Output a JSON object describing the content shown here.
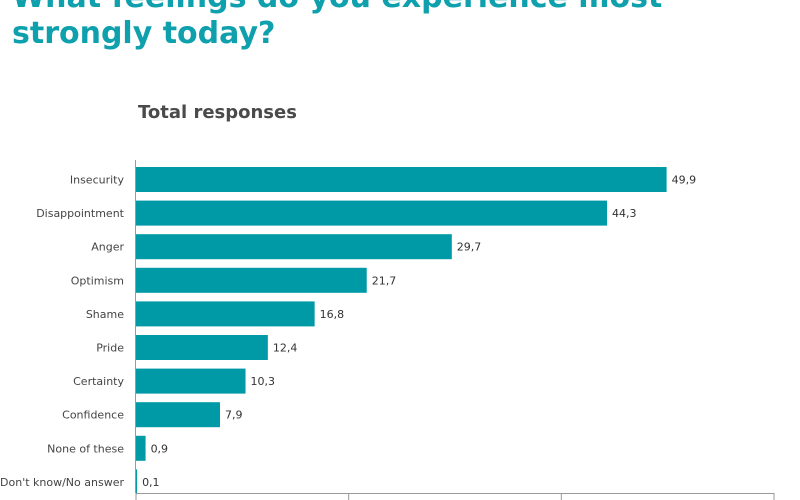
{
  "title": "What feelings do you experience most strongly today?",
  "subtitle": "Total responses",
  "colors": {
    "bar": "#009aa6",
    "title": "#0fa0ad",
    "axis": "#9a9a9a"
  },
  "chart_data": {
    "type": "bar",
    "orientation": "horizontal",
    "categories": [
      "Insecurity",
      "Disappointment",
      "Anger",
      "Optimism",
      "Shame",
      "Pride",
      "Certainty",
      "Confidence",
      "None of these",
      "Don't know/No answer"
    ],
    "values": [
      49.9,
      44.3,
      29.7,
      21.7,
      16.8,
      12.4,
      10.3,
      7.9,
      0.9,
      0.1
    ],
    "value_labels": [
      "49,9",
      "44,3",
      "29,7",
      "21,7",
      "16,8",
      "12,4",
      "10,3",
      "7,9",
      "0,9",
      "0,1"
    ],
    "xlim": [
      0,
      60
    ],
    "x_ticks": [
      0,
      20,
      40,
      60
    ],
    "grid": false,
    "legend": "none"
  }
}
